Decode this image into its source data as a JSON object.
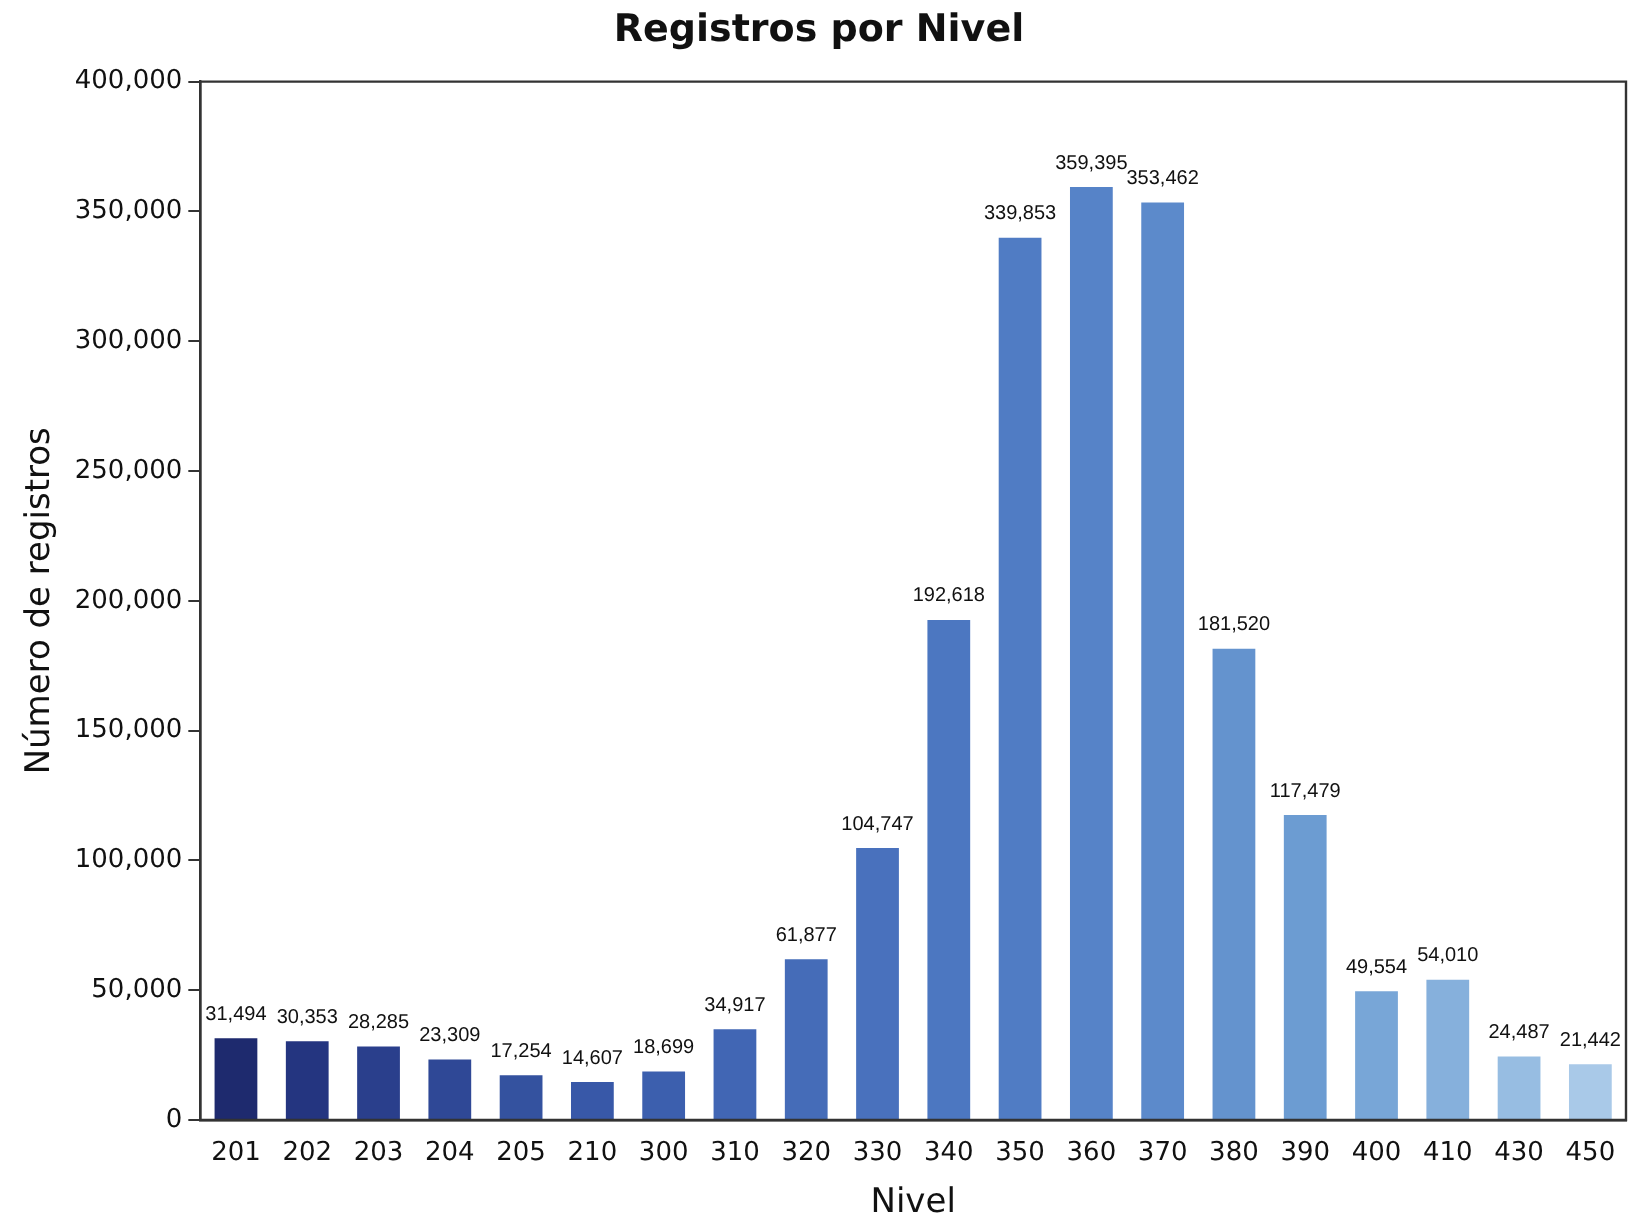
{
  "chart_data": {
    "type": "bar",
    "title": "Registros por Nivel",
    "xlabel": "Nivel",
    "ylabel": "Número de registros",
    "categories": [
      "201",
      "202",
      "203",
      "204",
      "205",
      "210",
      "300",
      "310",
      "320",
      "330",
      "340",
      "350",
      "360",
      "370",
      "380",
      "390",
      "400",
      "410",
      "430",
      "450"
    ],
    "values": [
      31494,
      30353,
      28285,
      23309,
      17254,
      14607,
      18699,
      34917,
      61877,
      104747,
      192618,
      339853,
      359395,
      353462,
      181520,
      117479,
      49554,
      54010,
      24487,
      21442
    ],
    "colors": [
      "#1e2a6e",
      "#243580",
      "#2a3f8c",
      "#2f4896",
      "#34529f",
      "#3858a8",
      "#3c5fae",
      "#4166b4",
      "#456cb8",
      "#4971bd",
      "#4c77c1",
      "#507cc4",
      "#5683c8",
      "#5c8acb",
      "#6493ce",
      "#6c9cd2",
      "#78a6d7",
      "#86b0dc",
      "#97bde2",
      "#a9c9e8"
    ],
    "value_labels": [
      "31,494",
      "30,353",
      "28,285",
      "23,309",
      "17,254",
      "14,607",
      "18,699",
      "34,917",
      "61,877",
      "104,747",
      "192,618",
      "339,853",
      "359,395",
      "353,462",
      "181,520",
      "117,479",
      "49,554",
      "54,010",
      "24,487",
      "21,442"
    ],
    "ylim": [
      0,
      400000
    ],
    "yticks": [
      0,
      {
        "value": 50000,
        "label": "50,000"
      },
      {
        "value": 100000,
        "label": "100,000"
      },
      {
        "value": 150000,
        "label": "150,000"
      },
      {
        "value": 200000,
        "label": "200,000"
      },
      {
        "value": 250000,
        "label": "250,000"
      },
      {
        "value": 300000,
        "label": "300,000"
      },
      {
        "value": 350000,
        "label": "350,000"
      },
      {
        "value": 400000,
        "label": "400,000"
      }
    ],
    "grid": false,
    "legend": false
  }
}
